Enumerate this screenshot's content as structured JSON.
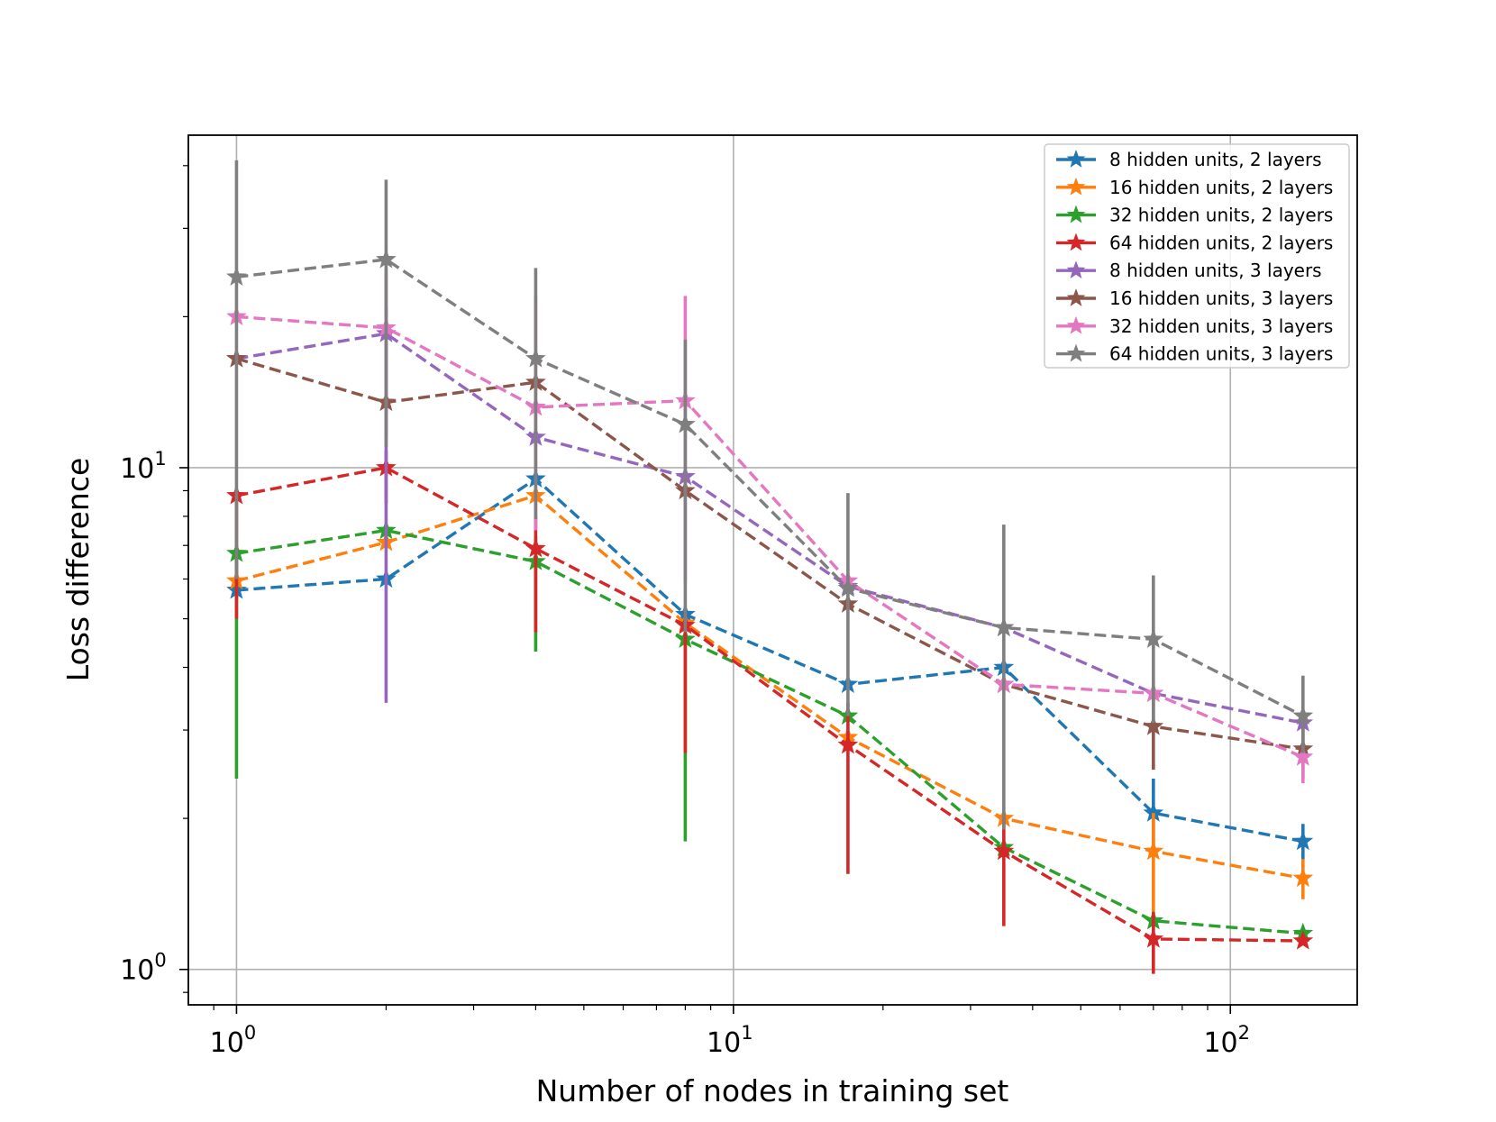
{
  "chart_data": {
    "type": "line",
    "title": "",
    "xlabel": "Number of nodes in training set",
    "ylabel": "Loss difference",
    "xscale": "log",
    "yscale": "log",
    "xlim": [
      0.8,
      180
    ],
    "ylim": [
      0.85,
      46
    ],
    "grid": true,
    "legend_position": "top-right",
    "x": [
      1,
      2,
      4,
      8,
      17,
      35,
      70,
      140
    ],
    "x_tick_labels": [
      {
        "value": 1,
        "base": "10",
        "exp": "0"
      },
      {
        "value": 10,
        "base": "10",
        "exp": "1"
      },
      {
        "value": 100,
        "base": "10",
        "exp": "2"
      }
    ],
    "y_tick_labels": [
      {
        "value": 1,
        "base": "10",
        "exp": "0"
      },
      {
        "value": 10,
        "base": "10",
        "exp": "1"
      }
    ],
    "series": [
      {
        "name": "8 hidden units, 2 layers",
        "color": "#1f77b4",
        "values": [
          5.7,
          6.0,
          9.5,
          5.1,
          3.7,
          4.0,
          2.05,
          1.8
        ],
        "err_low": [
          null,
          null,
          null,
          null,
          null,
          null,
          1.75,
          1.65
        ],
        "err_high": [
          null,
          null,
          null,
          null,
          null,
          null,
          2.4,
          1.95
        ]
      },
      {
        "name": "16 hidden units, 2 layers",
        "color": "#ff7f0e",
        "values": [
          5.95,
          7.1,
          8.8,
          4.9,
          2.9,
          2.0,
          1.72,
          1.52
        ],
        "err_low": [
          null,
          null,
          null,
          null,
          null,
          null,
          1.2,
          1.38
        ],
        "err_high": [
          null,
          null,
          null,
          null,
          null,
          null,
          2.05,
          1.66
        ]
      },
      {
        "name": "32 hidden units, 2 layers",
        "color": "#2ca02c",
        "values": [
          6.75,
          7.5,
          6.5,
          4.55,
          3.2,
          1.75,
          1.25,
          1.18
        ],
        "err_low": [
          2.4,
          null,
          4.3,
          1.8,
          null,
          null,
          null,
          null
        ],
        "err_high": [
          7.0,
          null,
          7.3,
          5.0,
          null,
          null,
          null,
          null
        ]
      },
      {
        "name": "64 hidden units, 2 layers",
        "color": "#d62728",
        "values": [
          8.8,
          10.0,
          6.9,
          4.85,
          2.8,
          1.72,
          1.15,
          1.14
        ],
        "err_low": [
          5.0,
          8.5,
          4.7,
          2.7,
          1.55,
          1.22,
          0.98,
          null
        ],
        "err_high": [
          null,
          10.8,
          8.0,
          5.2,
          3.4,
          2.0,
          1.3,
          null
        ]
      },
      {
        "name": "8 hidden units, 3 layers",
        "color": "#9467bd",
        "values": [
          16.5,
          18.5,
          11.5,
          9.6,
          5.8,
          4.8,
          3.55,
          3.1
        ],
        "err_low": [
          null,
          3.4,
          null,
          null,
          null,
          null,
          null,
          null
        ],
        "err_high": [
          null,
          21.0,
          null,
          null,
          null,
          null,
          null,
          null
        ]
      },
      {
        "name": "16 hidden units, 3 layers",
        "color": "#8c564b",
        "values": [
          16.5,
          13.5,
          14.8,
          9.0,
          5.35,
          3.7,
          3.05,
          2.75
        ],
        "err_low": [
          null,
          null,
          null,
          null,
          null,
          null,
          2.5,
          2.4
        ],
        "err_high": [
          null,
          null,
          null,
          null,
          null,
          null,
          3.5,
          3.05
        ]
      },
      {
        "name": "32 hidden units, 3 layers",
        "color": "#e377c2",
        "values": [
          20.0,
          19.0,
          13.2,
          13.6,
          5.95,
          3.7,
          3.55,
          2.65
        ],
        "err_low": [
          null,
          11.5,
          7.5,
          5.9,
          null,
          null,
          null,
          2.35
        ],
        "err_high": [
          null,
          25.0,
          22.0,
          22.0,
          null,
          null,
          null,
          3.0
        ]
      },
      {
        "name": "64 hidden units, 3 layers",
        "color": "#7f7f7f",
        "values": [
          24.0,
          26.0,
          16.5,
          12.2,
          5.75,
          4.8,
          4.55,
          3.2
        ],
        "err_low": [
          6.0,
          11.0,
          7.9,
          4.7,
          3.2,
          1.9,
          3.1,
          2.7
        ],
        "err_high": [
          41.0,
          37.5,
          25.0,
          18.0,
          8.9,
          7.7,
          6.1,
          3.85
        ]
      }
    ]
  }
}
